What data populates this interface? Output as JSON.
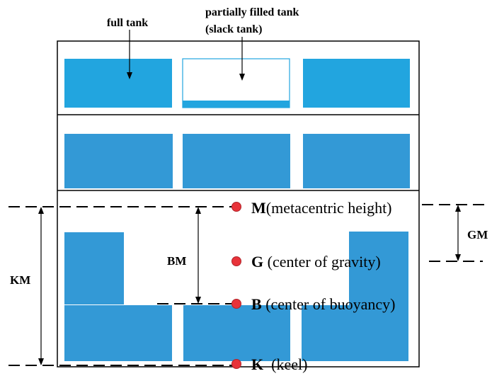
{
  "labels": {
    "full_tank": "full tank",
    "partial_line1": "partially filled tank",
    "partial_line2": "(slack tank)",
    "km": "KM",
    "bm": "BM",
    "gm": "GM"
  },
  "points": {
    "m_letter": "M",
    "m_desc": "(metacentric height)",
    "g_letter": "G",
    "g_desc": " (center of gravity)",
    "b_letter": "B",
    "b_desc": " (center of buoyancy)",
    "k_letter": "K",
    "k_desc": "  (keel)"
  },
  "colors": {
    "tank_top": "#22a5df",
    "tank": "#3399d6",
    "point": "#e8333a",
    "line": "#000000"
  }
}
